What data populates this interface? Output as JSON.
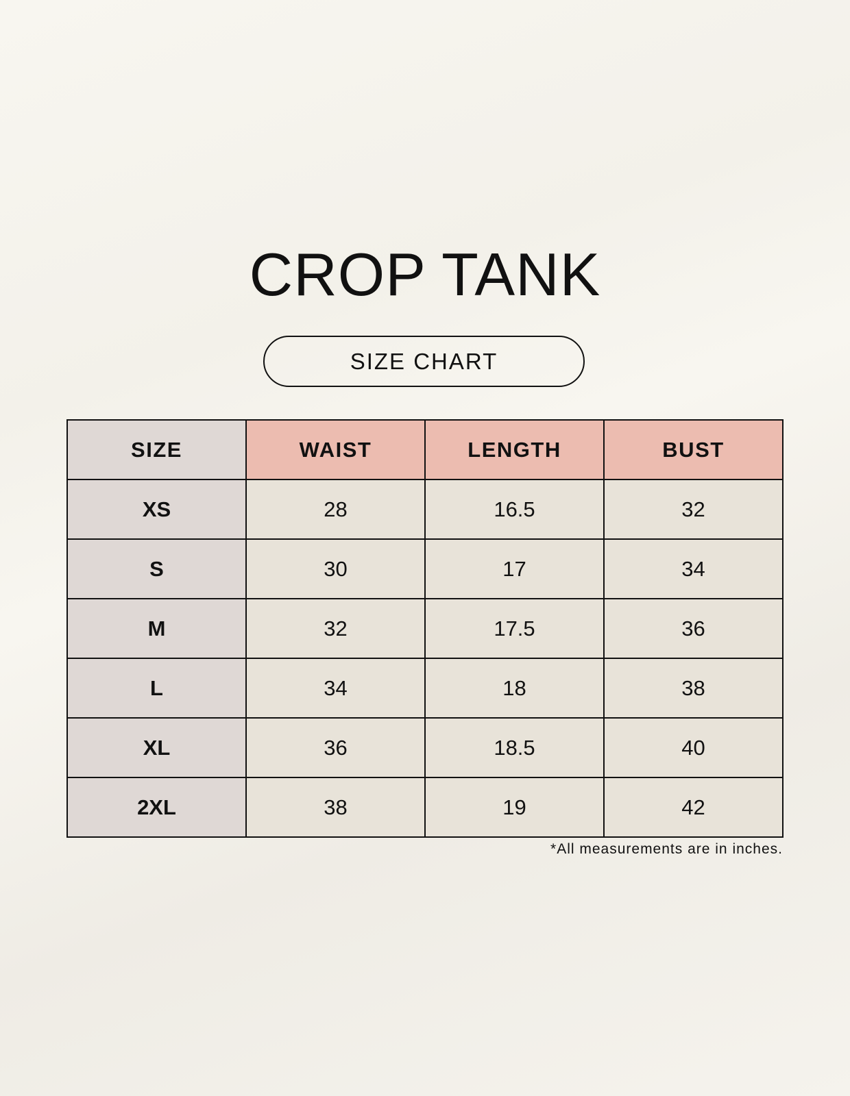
{
  "title": "CROP TANK",
  "subtitle": "SIZE CHART",
  "table": {
    "headers": [
      "SIZE",
      "WAIST",
      "LENGTH",
      "BUST"
    ],
    "rows": [
      [
        "XS",
        "28",
        "16.5",
        "32"
      ],
      [
        "S",
        "30",
        "17",
        "34"
      ],
      [
        "M",
        "32",
        "17.5",
        "36"
      ],
      [
        "L",
        "34",
        "18",
        "38"
      ],
      [
        "XL",
        "36",
        "18.5",
        "40"
      ],
      [
        "2XL",
        "38",
        "19",
        "42"
      ]
    ]
  },
  "footnote": "*All measurements are in inches.",
  "colors": {
    "header_accent": "#ecbcb0",
    "size_column": "#dfd8d5",
    "cell": "#e8e3d9"
  }
}
